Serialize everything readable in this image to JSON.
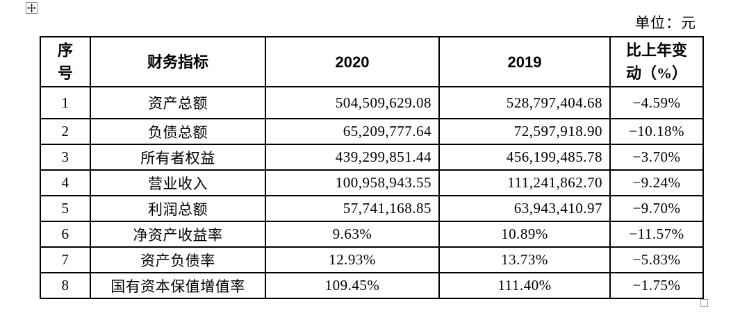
{
  "document": {
    "unit_label": "单位：元"
  },
  "icons": {
    "table_move_handle": "four-direction-move-cross",
    "table_resize_handle": "small-gray-square"
  },
  "table": {
    "headers": {
      "index": [
        "序",
        "号"
      ],
      "indicator": "财务指标",
      "y2020": "2020",
      "y2019": "2019",
      "change": [
        "比上年变",
        "动（%）"
      ]
    },
    "rows": [
      {
        "index": "1",
        "indicator": "资产总额",
        "y2020": "504,509,629.08",
        "y2019": "528,797,404.68",
        "change": "−4.59%"
      },
      {
        "index": "2",
        "indicator": "负债总额",
        "y2020": "65,209,777.64",
        "y2019": "72,597,918.90",
        "change": "−10.18%"
      },
      {
        "index": "3",
        "indicator": "所有者权益",
        "y2020": "439,299,851.44",
        "y2019": "456,199,485.78",
        "change": "−3.70%"
      },
      {
        "index": "4",
        "indicator": "营业收入",
        "y2020": "100,958,943.55",
        "y2019": "111,241,862.70",
        "change": "−9.24%"
      },
      {
        "index": "5",
        "indicator": "利润总额",
        "y2020": "57,741,168.85",
        "y2019": "63,943,410.97",
        "change": "−9.70%"
      },
      {
        "index": "6",
        "indicator": "净资产收益率",
        "y2020": "9.63%",
        "y2019": "10.89%",
        "change": "−11.57%"
      },
      {
        "index": "7",
        "indicator": "资产负债率",
        "y2020": "12.93%",
        "y2019": "13.73%",
        "change": "−5.83%"
      },
      {
        "index": "8",
        "indicator": "国有资本保值增值率",
        "y2020": "109.45%",
        "y2019": "111.40%",
        "change": "−1.75%"
      }
    ],
    "border_color": "#000000",
    "text_color": "#000000",
    "background_color": "#ffffff"
  }
}
